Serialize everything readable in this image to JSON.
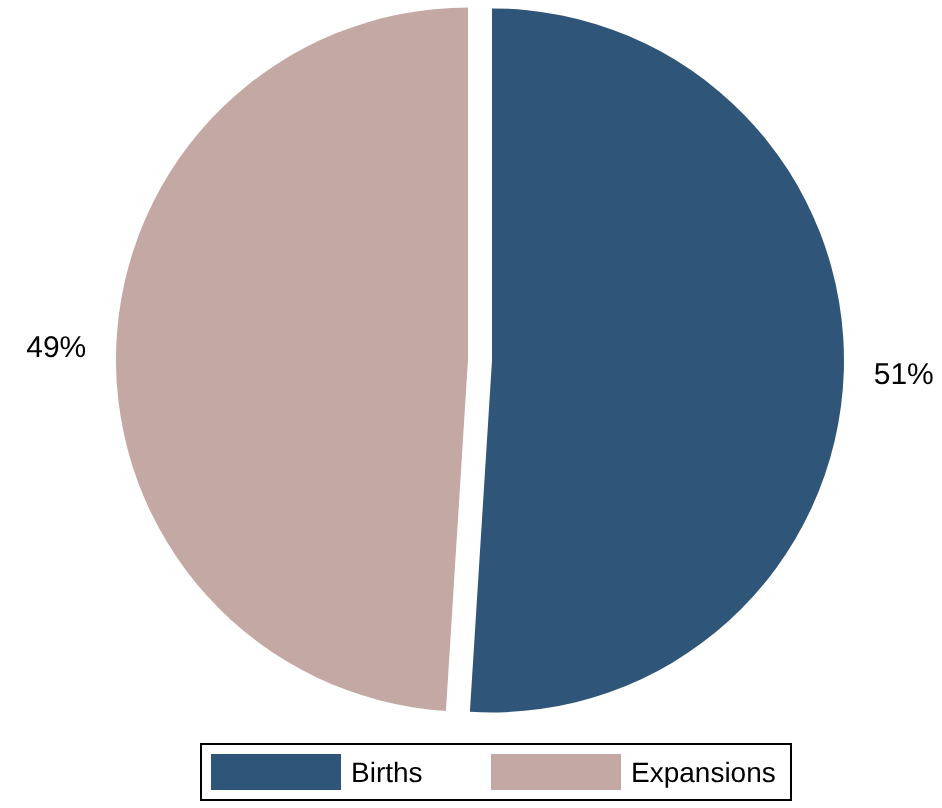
{
  "chart_data": {
    "type": "pie",
    "categories": [
      "Births",
      "Expansions"
    ],
    "values": [
      51,
      49
    ],
    "colors": [
      "#2f5678",
      "#c4a8a3"
    ],
    "value_labels": [
      "51%",
      "49%"
    ],
    "legend": "bottom"
  }
}
